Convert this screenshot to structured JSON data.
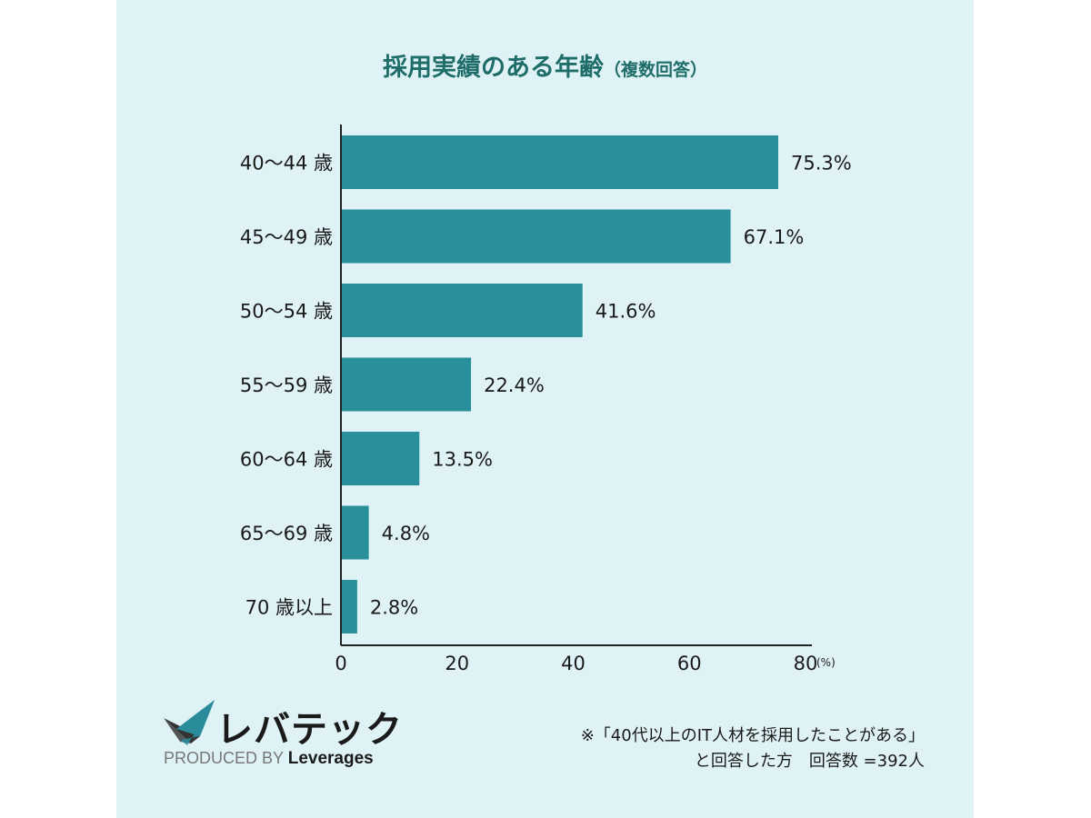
{
  "chart_data": {
    "type": "bar",
    "orientation": "horizontal",
    "title": "採用実績のある年齢",
    "subtitle": "（複数回答）",
    "categories": [
      "40〜44 歳",
      "45〜49 歳",
      "50〜54 歳",
      "55〜59 歳",
      "60〜64 歳",
      "65〜69 歳",
      "70 歳以上"
    ],
    "values": [
      75.3,
      67.1,
      41.6,
      22.4,
      13.5,
      4.8,
      2.8
    ],
    "value_labels": [
      "75.3%",
      "67.1%",
      "41.6%",
      "22.4%",
      "13.5%",
      "4.8%",
      "2.8%"
    ],
    "xlim": [
      0,
      80
    ],
    "x_ticks": [
      "0",
      "20",
      "40",
      "60",
      "80"
    ],
    "x_unit": "(%)",
    "bar_color": "#288f9b",
    "grid": false
  },
  "branding": {
    "logo_text": "レバテック",
    "produced_prefix": "PRODUCED BY",
    "produced_brand": "Leverages"
  },
  "note": {
    "line1": "※「40代以上のIT人材を採用したことがある」",
    "line2": "と回答した方　回答数 =392人"
  },
  "colors": {
    "background": "#dff2f6",
    "title": "#1f6d69",
    "bar": "#288f9b"
  }
}
